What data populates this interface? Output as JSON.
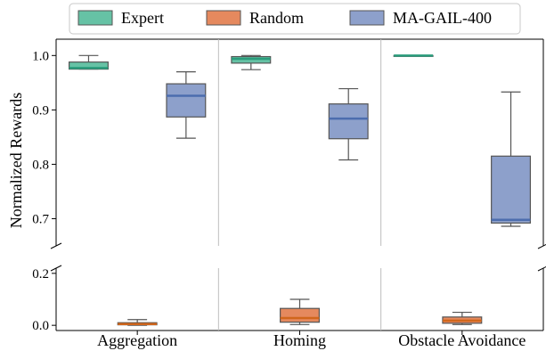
{
  "chart_data": {
    "type": "box",
    "ylabel": "Normalized Rewards",
    "categories": [
      "Aggregation",
      "Homing",
      "Obstacle Avoidance"
    ],
    "axes": [
      {
        "name": "upper",
        "ylim": [
          0.65,
          1.03
        ],
        "yticks": [
          0.7,
          0.8,
          0.9,
          1.0
        ],
        "ytick_labels": [
          "0.7",
          "0.8",
          "0.9",
          "1.0"
        ]
      },
      {
        "name": "lower",
        "ylim": [
          -0.02,
          0.22
        ],
        "yticks": [
          0.0,
          0.2
        ],
        "ytick_labels": [
          "0.0",
          "0.2"
        ]
      }
    ],
    "legend": {
      "placement": "top"
    },
    "series": [
      {
        "name": "Expert",
        "color": "#66c2a5",
        "median_color": "#2a9d7c",
        "boxes": [
          {
            "category": "Aggregation",
            "whislo": 0.975,
            "q1": 0.975,
            "med": 0.977,
            "q3": 0.988,
            "whishi": 1.0
          },
          {
            "category": "Homing",
            "whislo": 0.974,
            "q1": 0.986,
            "med": 0.994,
            "q3": 0.998,
            "whishi": 1.0
          },
          {
            "category": "Obstacle Avoidance",
            "whislo": 1.0,
            "q1": 1.0,
            "med": 1.0,
            "q3": 1.0,
            "whishi": 1.0
          }
        ]
      },
      {
        "name": "Random",
        "color": "#e5895e",
        "median_color": "#d0661c",
        "boxes": [
          {
            "category": "Aggregation",
            "whislo": 0.0,
            "q1": 0.002,
            "med": 0.005,
            "q3": 0.01,
            "whishi": 0.022
          },
          {
            "category": "Homing",
            "whislo": 0.003,
            "q1": 0.012,
            "med": 0.028,
            "q3": 0.065,
            "whishi": 0.1
          },
          {
            "category": "Obstacle Avoidance",
            "whislo": 0.003,
            "q1": 0.008,
            "med": 0.018,
            "q3": 0.032,
            "whishi": 0.05
          }
        ]
      },
      {
        "name": "MA-GAIL-400",
        "color": "#8da0cb",
        "median_color": "#4c6dae",
        "boxes": [
          {
            "category": "Aggregation",
            "whislo": 0.848,
            "q1": 0.887,
            "med": 0.926,
            "q3": 0.948,
            "whishi": 0.97
          },
          {
            "category": "Homing",
            "whislo": 0.808,
            "q1": 0.847,
            "med": 0.884,
            "q3": 0.911,
            "whishi": 0.939
          },
          {
            "category": "Obstacle Avoidance",
            "whislo": 0.686,
            "q1": 0.692,
            "med": 0.698,
            "q3": 0.815,
            "whishi": 0.933
          }
        ]
      }
    ]
  }
}
